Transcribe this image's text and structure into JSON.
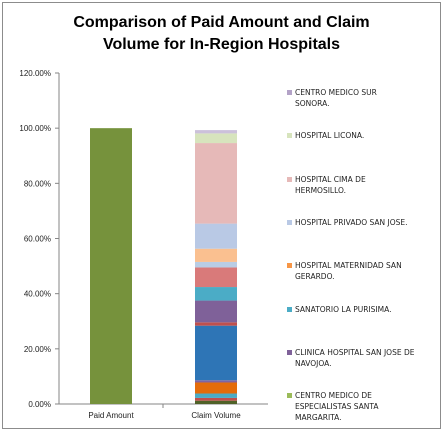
{
  "chart_data": {
    "type": "bar",
    "stacked": true,
    "title": "Comparison of Paid Amount and Claim Volume for In-Region Hospitals",
    "title_lines": [
      "Comparison of Paid Amount and Claim",
      "Volume for In-Region Hospitals"
    ],
    "xlabel": "",
    "ylabel": "",
    "ylim": [
      0,
      120
    ],
    "y_ticks": [
      "0.00%",
      "20.00%",
      "40.00%",
      "60.00%",
      "80.00%",
      "100.00%",
      "120.00%"
    ],
    "categories": [
      "Paid Amount",
      "Claim Volume"
    ],
    "legend_position": "right",
    "paid_amount": {
      "value": 100,
      "color": "#76923c"
    },
    "claim_volume_segments": [
      {
        "value": 1.2,
        "color": "#4f6228"
      },
      {
        "value": 1.0,
        "color": "#c0504d"
      },
      {
        "value": 1.6,
        "color": "#4bacc6"
      },
      {
        "value": 4.0,
        "color": "#e46c0a"
      },
      {
        "value": 0.8,
        "color": "#8064a2"
      },
      {
        "value": 19.8,
        "color": "#2e75b6"
      },
      {
        "value": 1.2,
        "color": "#c0504d"
      },
      {
        "value": 7.9,
        "color": "#7f6199"
      },
      {
        "value": 4.9,
        "color": "#4bacc6"
      },
      {
        "value": 7.1,
        "color": "#d97a7a"
      },
      {
        "value": 2.0,
        "color": "#b9cde5"
      },
      {
        "value": 4.8,
        "color": "#fac090"
      },
      {
        "value": 9.1,
        "color": "#b9c9e5"
      },
      {
        "value": 29.2,
        "color": "#e6b9b8"
      },
      {
        "value": 3.5,
        "color": "#d7e4bd"
      },
      {
        "value": 1.2,
        "color": "#ccc1da"
      }
    ],
    "legend": [
      {
        "label": "CENTRO MEDICO SUR SONORA.",
        "lines": [
          "CENTRO MEDICO SUR",
          "SONORA."
        ],
        "color": "#b3a2c7"
      },
      {
        "label": "HOSPITAL LICONA.",
        "lines": [
          "HOSPITAL LICONA."
        ],
        "color": "#d7e4bd"
      },
      {
        "label": "HOSPITAL CIMA DE HERMOSILLO.",
        "lines": [
          "HOSPITAL CIMA DE",
          "HERMOSILLO."
        ],
        "color": "#e6b9b8"
      },
      {
        "label": "HOSPITAL PRIVADO SAN JOSE.",
        "lines": [
          "HOSPITAL PRIVADO SAN JOSE."
        ],
        "color": "#b9c9e5"
      },
      {
        "label": "HOSPITAL MATERNIDAD SAN GERARDO.",
        "lines": [
          "HOSPITAL MATERNIDAD SAN",
          "GERARDO."
        ],
        "color": "#f79646"
      },
      {
        "label": "SANATORIO LA PURISIMA.",
        "lines": [
          "SANATORIO LA PURISIMA."
        ],
        "color": "#4bacc6"
      },
      {
        "label": "CLINICA HOSPITAL SAN JOSE DE NAVOJOA.",
        "lines": [
          "CLINICA HOSPITAL SAN JOSE DE",
          "NAVOJOA."
        ],
        "color": "#7f6199"
      },
      {
        "label": "CENTRO MEDICO DE ESPECIALISTAS SANTA MARGARITA.",
        "lines": [
          "CENTRO MEDICO DE",
          "ESPECIALISTAS SANTA",
          "MARGARITA."
        ],
        "color": "#9bbb59"
      }
    ]
  }
}
